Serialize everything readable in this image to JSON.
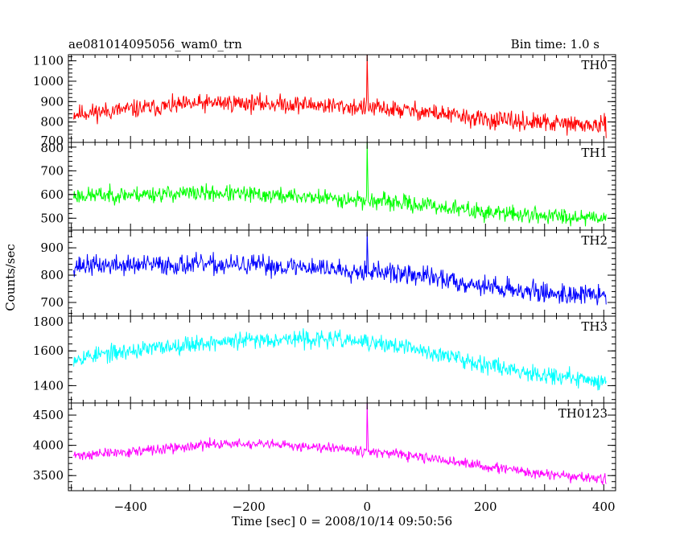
{
  "header": {
    "title": "ae081014095056_wam0_trn",
    "bin_time": "Bin time: 1.0 s"
  },
  "chart_data": {
    "type": "line",
    "xlabel": "Time [sec] 0 = 2008/10/14 09:50:56",
    "ylabel": "Counts/sec",
    "xlim": [
      -505,
      420
    ],
    "xticks": [
      -400,
      -200,
      0,
      200,
      400
    ],
    "x_tick_labels": [
      "−400",
      "−200",
      "0",
      "200",
      "400"
    ],
    "x_range": [
      -496,
      404
    ],
    "panels": [
      {
        "name": "TH0",
        "color": "#ff0000",
        "ylim": [
          700,
          1130
        ],
        "yticks": [
          700,
          800,
          900,
          1000,
          1100
        ],
        "trend": [
          [
            -496,
            840
          ],
          [
            -300,
            885
          ],
          [
            -250,
            895
          ],
          [
            -100,
            885
          ],
          [
            0,
            870
          ],
          [
            100,
            850
          ],
          [
            200,
            810
          ],
          [
            300,
            795
          ],
          [
            400,
            780
          ]
        ],
        "noise": 38,
        "spike_peak": 1130,
        "seed": 11
      },
      {
        "name": "TH1",
        "color": "#00ff00",
        "ylim": [
          450,
          820
        ],
        "yticks": [
          500,
          600,
          700,
          800
        ],
        "trend": [
          [
            -496,
            595
          ],
          [
            -300,
            605
          ],
          [
            -250,
            605
          ],
          [
            -100,
            590
          ],
          [
            0,
            575
          ],
          [
            100,
            555
          ],
          [
            200,
            525
          ],
          [
            300,
            510
          ],
          [
            400,
            505
          ]
        ],
        "noise": 30,
        "spike_peak": 820,
        "seed": 23
      },
      {
        "name": "TH2",
        "color": "#0000ff",
        "ylim": [
          650,
          965
        ],
        "yticks": [
          700,
          800,
          900
        ],
        "trend": [
          [
            -496,
            835
          ],
          [
            -300,
            838
          ],
          [
            -200,
            836
          ],
          [
            -100,
            830
          ],
          [
            0,
            815
          ],
          [
            100,
            795
          ],
          [
            200,
            760
          ],
          [
            300,
            735
          ],
          [
            400,
            725
          ]
        ],
        "noise": 32,
        "spike_peak": 960,
        "seed": 37
      },
      {
        "name": "TH3",
        "color": "#00ffff",
        "ylim": [
          1300,
          1800
        ],
        "yticks": [
          1400,
          1600,
          1800
        ],
        "trend": [
          [
            -496,
            1560
          ],
          [
            -300,
            1640
          ],
          [
            -150,
            1670
          ],
          [
            -50,
            1665
          ],
          [
            50,
            1630
          ],
          [
            150,
            1560
          ],
          [
            250,
            1490
          ],
          [
            350,
            1440
          ],
          [
            400,
            1425
          ]
        ],
        "noise": 42,
        "spike_peak": 0,
        "seed": 53
      },
      {
        "name": "TH0123",
        "color": "#ff00ff",
        "ylim": [
          3250,
          4700
        ],
        "yticks": [
          3500,
          4000,
          4500
        ],
        "trend": [
          [
            -496,
            3830
          ],
          [
            -350,
            3930
          ],
          [
            -250,
            4030
          ],
          [
            -150,
            4000
          ],
          [
            -50,
            3970
          ],
          [
            0,
            3900
          ],
          [
            100,
            3790
          ],
          [
            200,
            3650
          ],
          [
            300,
            3520
          ],
          [
            400,
            3440
          ]
        ],
        "noise": 72,
        "spike_peak": 4700,
        "seed": 71
      }
    ]
  }
}
